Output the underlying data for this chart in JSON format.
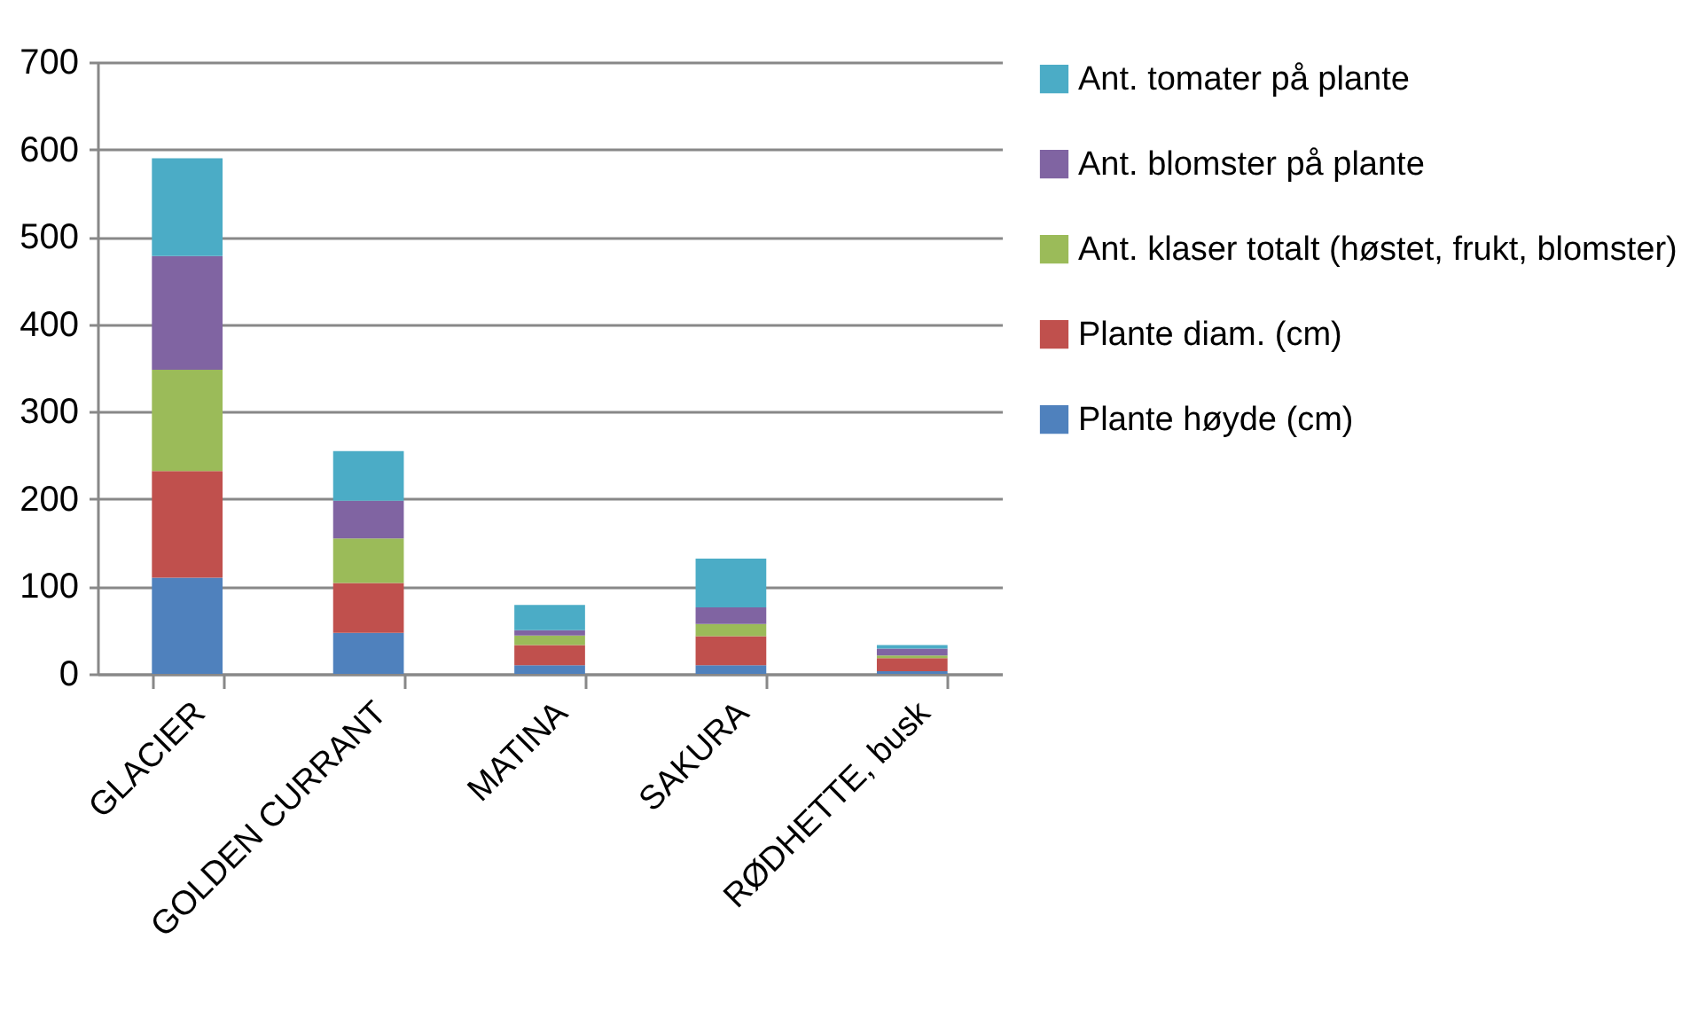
{
  "chart_data": {
    "type": "bar",
    "stacked": true,
    "categories": [
      "GLACIER",
      "GOLDEN CURRANT",
      "MATINA",
      "SAKURA",
      "RØDHETTE, busk"
    ],
    "series": [
      {
        "name": "Plante høyde (cm)",
        "color": "#4f81bd",
        "values": [
          110,
          47,
          10,
          10,
          3
        ]
      },
      {
        "name": "Plante diam. (cm)",
        "color": "#c0504d",
        "values": [
          122,
          57,
          23,
          33,
          15
        ]
      },
      {
        "name": "Ant. klaser totalt (høstet, frukt, blomster)",
        "color": "#9bbb59",
        "values": [
          116,
          51,
          11,
          14,
          3
        ]
      },
      {
        "name": "Ant. blomster på plante",
        "color": "#8064a2",
        "values": [
          130,
          43,
          6,
          19,
          8
        ]
      },
      {
        "name": "Ant. tomater på plante",
        "color": "#4bacc6",
        "values": [
          112,
          57,
          29,
          56,
          4
        ]
      }
    ],
    "ylim": [
      0,
      700
    ],
    "yticks": [
      0,
      100,
      200,
      300,
      400,
      500,
      600,
      700
    ],
    "grid": "y",
    "legend": "right"
  }
}
